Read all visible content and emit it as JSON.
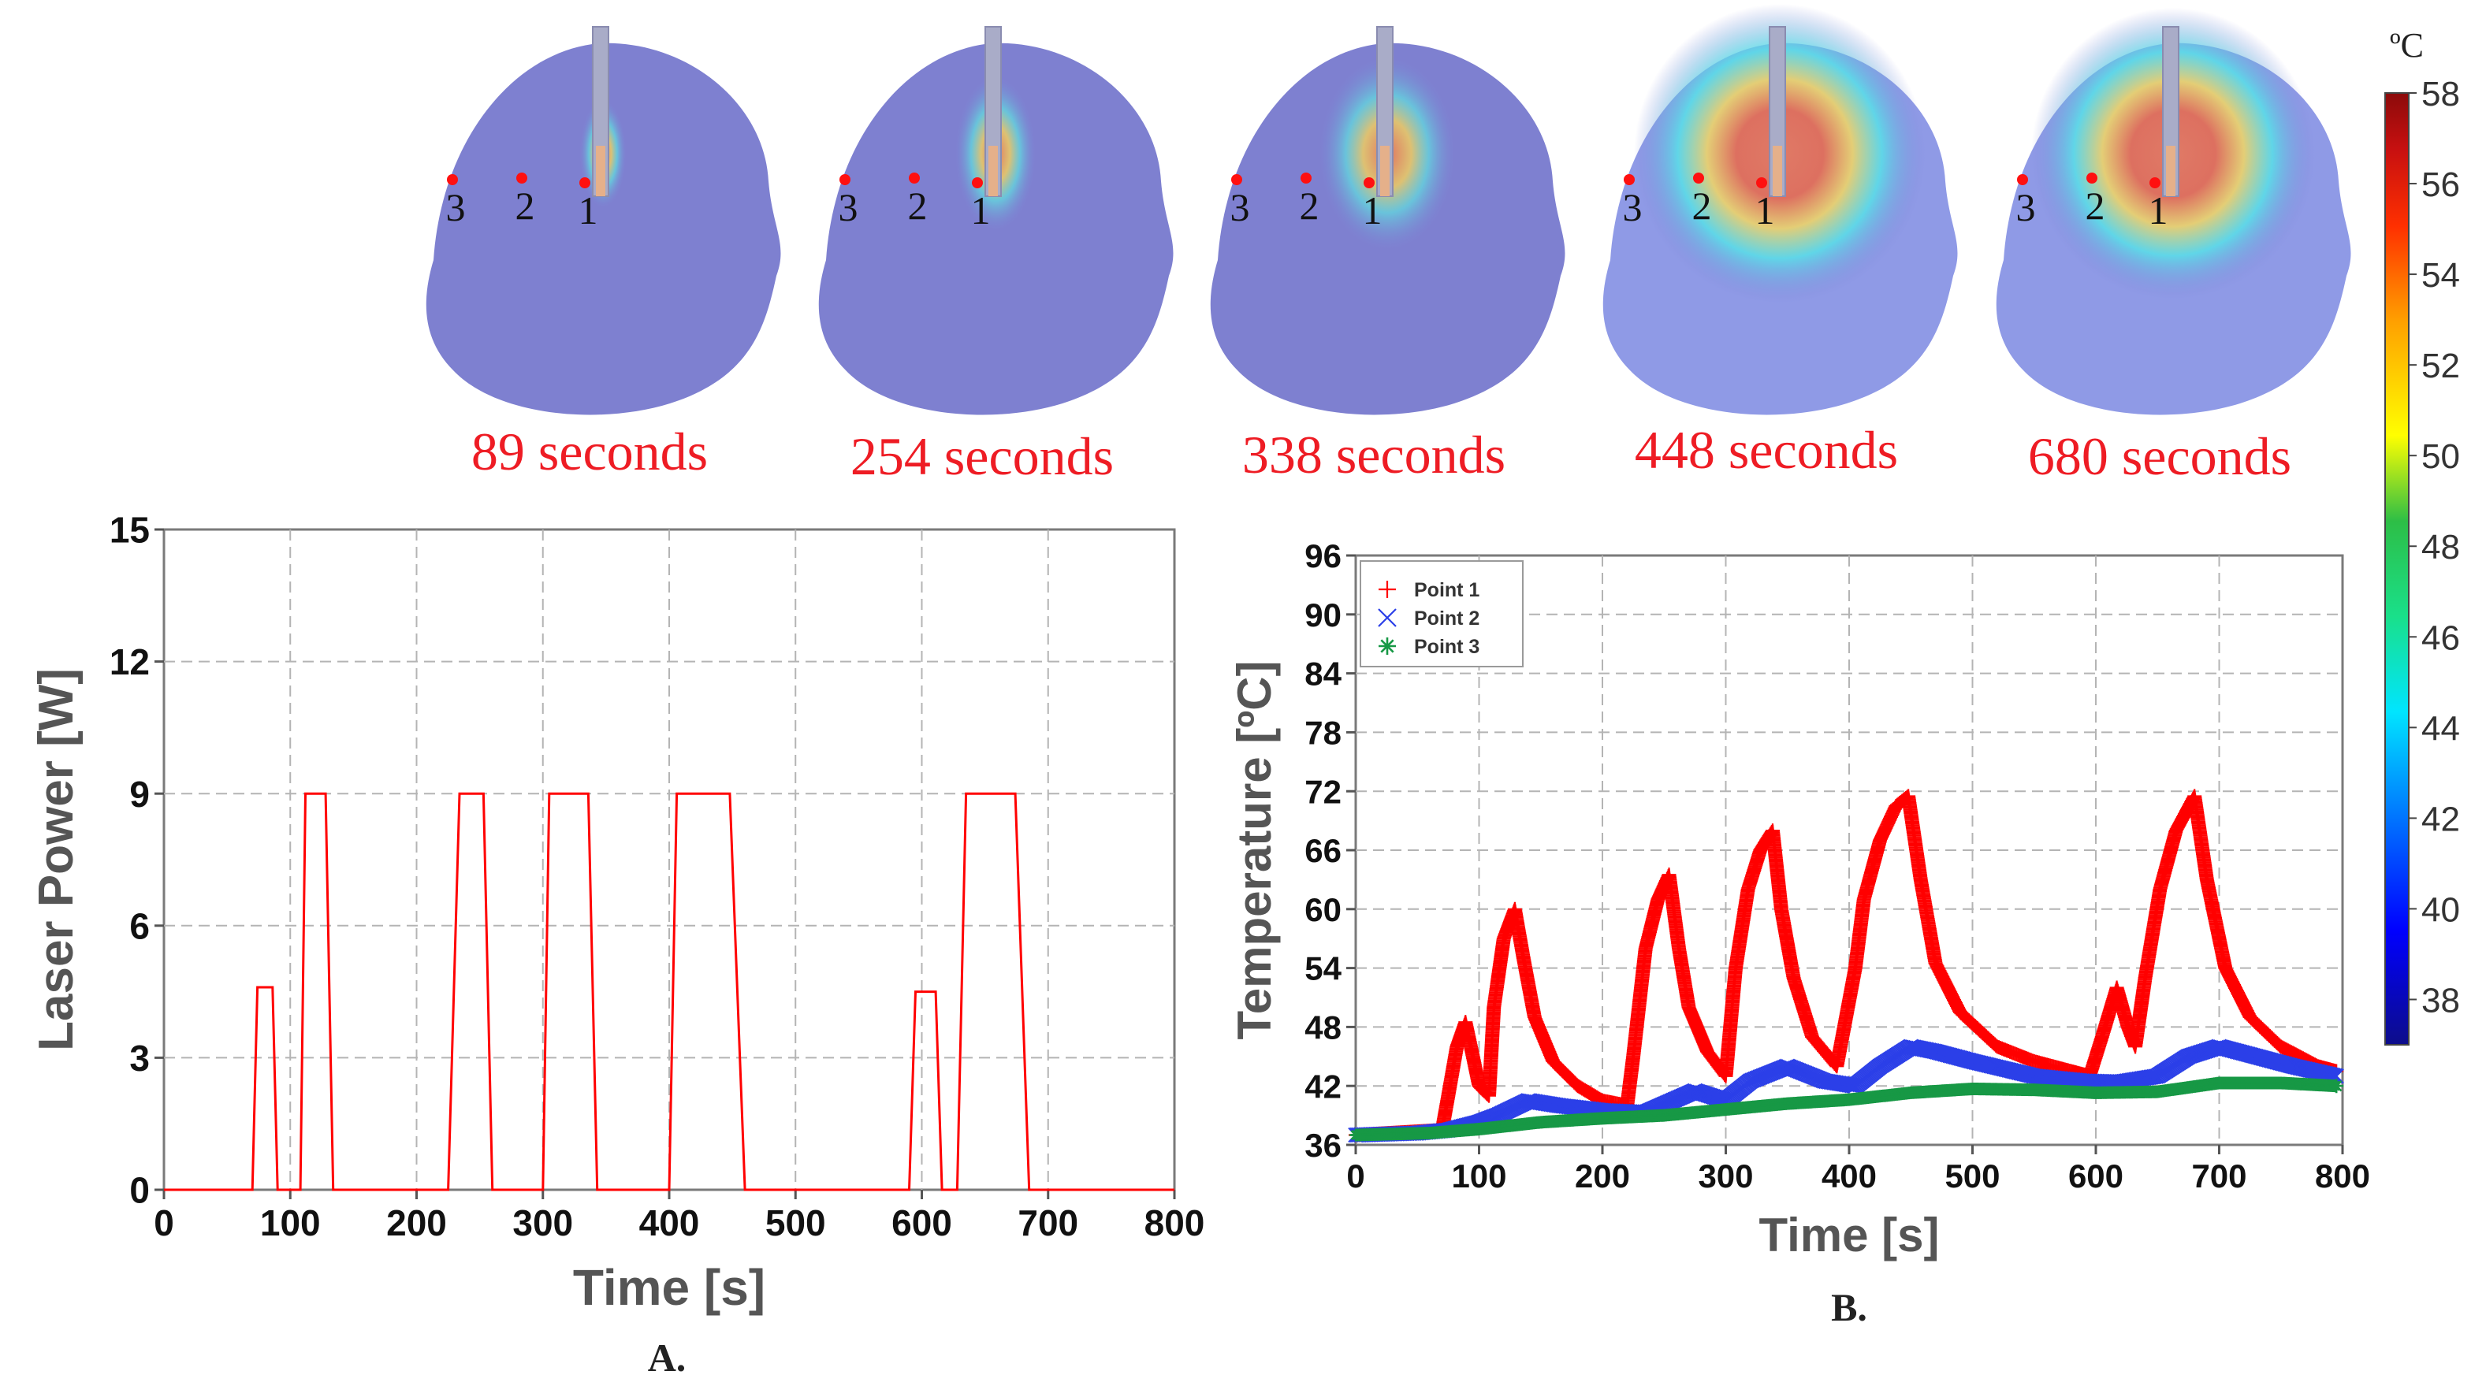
{
  "snapshots": {
    "times": [
      "89 seconds",
      "254 seconds",
      "338 seconds",
      "448 seconds",
      "680 seconds"
    ],
    "point_labels": [
      "1",
      "2",
      "3"
    ],
    "caption_color": "#ee1c24"
  },
  "colorbar": {
    "unit": "ºC",
    "ticks": [
      "58",
      "56",
      "54",
      "52",
      "50",
      "48",
      "46",
      "44",
      "42",
      "40",
      "38"
    ],
    "range": [
      37,
      58
    ],
    "colors": [
      "#0d0d8a",
      "#0000ff",
      "#0080ff",
      "#00e5ff",
      "#19e08a",
      "#2dbe46",
      "#ffff00",
      "#ffa000",
      "#ff3000",
      "#c81010",
      "#8c0a0a"
    ]
  },
  "chart_data": [
    {
      "id": "A",
      "type": "line",
      "caption": "A.",
      "xlabel": "Time [s]",
      "ylabel": "Laser Power [W]",
      "xlim": [
        0,
        800
      ],
      "ylim": [
        0,
        15
      ],
      "xticks": [
        "0",
        "100",
        "200",
        "300",
        "400",
        "500",
        "600",
        "700",
        "800"
      ],
      "yticks": [
        "0",
        "3",
        "6",
        "9",
        "12",
        "15"
      ],
      "grid": true,
      "color": "#ff0000",
      "x": [
        0,
        70,
        74,
        86,
        90,
        108,
        112,
        128,
        134,
        225,
        234,
        253,
        260,
        300,
        305,
        336,
        343,
        400,
        406,
        448,
        460,
        590,
        595,
        611,
        616,
        628,
        635,
        674,
        685,
        800
      ],
      "y": [
        0,
        0,
        4.6,
        4.6,
        0,
        0,
        9,
        9,
        0,
        0,
        9,
        9,
        0,
        0,
        9,
        9,
        0,
        0,
        9,
        9,
        0,
        0,
        4.5,
        4.5,
        0,
        0,
        9,
        9,
        0,
        0
      ]
    },
    {
      "id": "B",
      "type": "scatter",
      "caption": "B.",
      "xlabel": "Time [s]",
      "ylabel": "Temperature [ºC]",
      "xlim": [
        0,
        800
      ],
      "ylim": [
        36,
        96
      ],
      "xticks": [
        "0",
        "100",
        "200",
        "300",
        "400",
        "500",
        "600",
        "700",
        "800"
      ],
      "yticks": [
        "36",
        "42",
        "48",
        "54",
        "60",
        "66",
        "72",
        "78",
        "84",
        "90",
        "96"
      ],
      "grid": true,
      "legend_position": "top-left",
      "series": [
        {
          "name": "Point 1",
          "marker": "+",
          "color": "#ff0000",
          "x": [
            0,
            70,
            75,
            82,
            89,
            95,
            100,
            108,
            112,
            120,
            129,
            136,
            145,
            160,
            180,
            200,
            220,
            225,
            235,
            245,
            254,
            262,
            270,
            285,
            300,
            308,
            318,
            328,
            338,
            345,
            355,
            370,
            390,
            405,
            412,
            425,
            438,
            448,
            458,
            470,
            490,
            520,
            550,
            580,
            595,
            605,
            617,
            626,
            632,
            640,
            652,
            665,
            680,
            690,
            705,
            725,
            750,
            780,
            795
          ],
          "y": [
            37,
            37.5,
            41,
            46,
            48.5,
            45,
            42,
            41,
            50,
            57,
            60,
            55,
            49,
            44.5,
            42,
            40.5,
            40,
            45,
            56,
            61,
            63.5,
            56,
            50,
            45.5,
            43,
            54,
            62,
            66,
            68,
            60,
            53,
            47,
            44,
            54,
            61,
            67,
            70.5,
            71.5,
            63,
            54.5,
            49.5,
            46,
            44.5,
            43.5,
            43,
            47,
            52,
            48,
            46,
            53,
            62,
            68,
            71.5,
            63,
            54,
            49,
            46,
            44,
            43.5
          ]
        },
        {
          "name": "Point 2",
          "marker": "×",
          "color": "#2b3fe8",
          "x": [
            0,
            50,
            75,
            100,
            115,
            140,
            165,
            200,
            235,
            275,
            300,
            320,
            350,
            380,
            405,
            425,
            450,
            470,
            500,
            550,
            590,
            620,
            650,
            675,
            700,
            730,
            760,
            795
          ],
          "y": [
            37,
            37.2,
            37.5,
            38.3,
            39,
            40.5,
            40,
            39.5,
            39.3,
            41.5,
            40.5,
            42.5,
            44,
            42.5,
            42,
            44,
            46,
            45.5,
            44.5,
            43,
            42.5,
            42.4,
            43,
            45,
            46,
            45,
            44,
            43
          ]
        },
        {
          "name": "Point 3",
          "marker": "✳",
          "color": "#179845",
          "x": [
            0,
            60,
            100,
            150,
            200,
            250,
            300,
            350,
            400,
            450,
            500,
            550,
            600,
            650,
            700,
            750,
            795
          ],
          "y": [
            37,
            37.2,
            37.6,
            38.3,
            38.7,
            39,
            39.6,
            40.2,
            40.6,
            41.3,
            41.7,
            41.6,
            41.3,
            41.4,
            42.3,
            42.3,
            42
          ]
        }
      ]
    }
  ]
}
